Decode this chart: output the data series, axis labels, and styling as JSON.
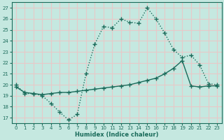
{
  "xlabel": "Humidex (Indice chaleur)",
  "ylabel": "",
  "xlim": [
    -0.5,
    23.5
  ],
  "ylim": [
    16.5,
    27.5
  ],
  "yticks": [
    17,
    18,
    19,
    20,
    21,
    22,
    23,
    24,
    25,
    26,
    27
  ],
  "xticks": [
    0,
    1,
    2,
    3,
    4,
    5,
    6,
    7,
    8,
    9,
    10,
    11,
    12,
    13,
    14,
    15,
    16,
    17,
    18,
    19,
    20,
    21,
    22,
    23
  ],
  "bg_color": "#c5e8e0",
  "grid_color": "#e8c8c8",
  "line_color": "#1a6b5a",
  "line1_x": [
    0,
    1,
    2,
    3,
    4,
    5,
    6,
    7,
    8,
    9,
    10,
    11,
    12,
    13,
    14,
    15,
    16,
    17,
    18,
    19,
    20,
    21,
    22,
    23
  ],
  "line1_y": [
    20.0,
    19.2,
    19.2,
    19.0,
    18.3,
    17.5,
    16.8,
    17.3,
    21.0,
    23.7,
    25.3,
    25.2,
    26.0,
    25.7,
    25.6,
    27.0,
    26.0,
    24.7,
    23.2,
    22.5,
    22.7,
    21.8,
    20.1,
    20.0
  ],
  "line2_x": [
    0,
    1,
    2,
    3,
    4,
    5,
    6,
    7,
    8,
    9,
    10,
    11,
    12,
    13,
    14,
    15,
    16,
    17,
    18,
    19,
    20,
    21,
    22,
    23
  ],
  "line2_y": [
    19.8,
    19.3,
    19.2,
    19.1,
    19.2,
    19.3,
    19.3,
    19.4,
    19.5,
    19.6,
    19.7,
    19.8,
    19.9,
    20.0,
    20.2,
    20.4,
    20.6,
    21.0,
    21.5,
    22.2,
    19.9,
    19.8,
    19.9,
    19.9
  ]
}
